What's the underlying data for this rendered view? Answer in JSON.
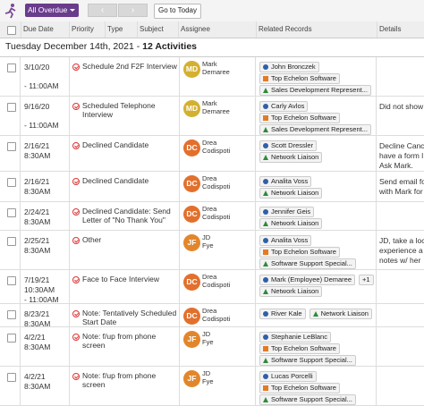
{
  "toolbar": {
    "filter": "All Overdue",
    "today_button": "Go to Today"
  },
  "columns": [
    "Due Date",
    "Priority",
    "Type",
    "Subject",
    "Assignee",
    "Related Records",
    "Details"
  ],
  "group_header": {
    "date": "Tuesday December 14th, 2021 -",
    "count": "12 Activities"
  },
  "rows": [
    {
      "date_lines": [
        "3/10/20",
        "- 11:00AM"
      ],
      "subject": "Schedule 2nd F2F Interview",
      "initials": "MD",
      "avatar_color": "#d4b030",
      "assignee": [
        "Mark",
        "Demaree"
      ],
      "related": [
        [
          {
            "text": "John Bronczek",
            "icon": "circle"
          }
        ],
        [
          {
            "text": "Top Echelon Software",
            "icon": "square"
          }
        ],
        [
          {
            "text": "Sales Development Represent...",
            "icon": "triangle"
          }
        ]
      ],
      "details": []
    },
    {
      "date_lines": [
        "9/16/20",
        "- 11:00AM"
      ],
      "subject": "Scheduled Telephone Interview",
      "initials": "MD",
      "avatar_color": "#d4b030",
      "assignee": [
        "Mark",
        "Demaree"
      ],
      "related": [
        [
          {
            "text": "Carly Avlos",
            "icon": "circle"
          }
        ],
        [
          {
            "text": "Top Echelon Software",
            "icon": "square"
          }
        ],
        [
          {
            "text": "Sales Development Represent...",
            "icon": "triangle"
          }
        ]
      ],
      "details": [
        "Did not show"
      ]
    },
    {
      "date_lines": [
        "2/16/21",
        "8:30AM"
      ],
      "subject": "Declined Candidate",
      "initials": "DC",
      "avatar_color": "#e2702c",
      "assignee": [
        "Drea",
        "Codispoti"
      ],
      "related": [
        [
          {
            "text": "Scott Dressler",
            "icon": "circle"
          }
        ],
        [
          {
            "text": "Network Liaison",
            "icon": "triangle"
          }
        ]
      ],
      "details": [
        "Decline Canc",
        "have a form l",
        "Ask Mark."
      ]
    },
    {
      "date_lines": [
        "2/16/21",
        "8:30AM"
      ],
      "subject": "Declined Candidate",
      "initials": "DC",
      "avatar_color": "#e2702c",
      "assignee": [
        "Drea",
        "Codispoti"
      ],
      "related": [
        [
          {
            "text": "Analita Voss",
            "icon": "circle"
          }
        ],
        [
          {
            "text": "Network Liaison",
            "icon": "triangle"
          }
        ]
      ],
      "details": [
        "Send email fo",
        "with Mark for"
      ]
    },
    {
      "date_lines": [
        "2/24/21",
        "8:30AM"
      ],
      "subject": "Declined Candidate: Send Letter of \"No Thank You\"",
      "initials": "DC",
      "avatar_color": "#e2702c",
      "assignee": [
        "Drea",
        "Codispoti"
      ],
      "related": [
        [
          {
            "text": "Jennifer Geis",
            "icon": "circle"
          }
        ],
        [
          {
            "text": "Network Liaison",
            "icon": "triangle"
          }
        ]
      ],
      "details": []
    },
    {
      "date_lines": [
        "2/25/21",
        "8:30AM"
      ],
      "subject": "Other",
      "initials": "JF",
      "avatar_color": "#e2862c",
      "assignee": [
        "JD",
        "Fye"
      ],
      "related": [
        [
          {
            "text": "Analita Voss",
            "icon": "circle"
          }
        ],
        [
          {
            "text": "Top Echelon Software",
            "icon": "square"
          }
        ],
        [
          {
            "text": "Software Support Special...",
            "icon": "triangle"
          }
        ]
      ],
      "details": [
        "JD, take a loc",
        "experience a",
        "notes w/ her"
      ]
    },
    {
      "date_lines": [
        "7/19/21",
        "10:30AM",
        "- 11:00AM"
      ],
      "subject": "Face to Face Interview",
      "initials": "DC",
      "avatar_color": "#e2702c",
      "assignee": [
        "Drea",
        "Codispoti"
      ],
      "related": [
        [
          {
            "text": "Mark (Employee) Demaree",
            "icon": "circle"
          },
          {
            "text": "+1",
            "icon": "none"
          }
        ],
        [
          {
            "text": "Network Liaison",
            "icon": "triangle"
          }
        ]
      ],
      "details": []
    },
    {
      "date_lines": [
        "8/23/21",
        "8:30AM"
      ],
      "subject": "Note: Tentatively Scheduled Start Date",
      "initials": "DC",
      "avatar_color": "#e2702c",
      "assignee": [
        "Drea",
        "Codispoti"
      ],
      "related": [
        [
          {
            "text": "River Kale",
            "icon": "circle"
          },
          {
            "text": "Network Liaison",
            "icon": "triangle"
          }
        ]
      ],
      "details": []
    },
    {
      "date_lines": [
        "4/2/21",
        "8:30AM"
      ],
      "subject": "Note: f/up from phone screen",
      "initials": "JF",
      "avatar_color": "#e2862c",
      "assignee": [
        "JD",
        "Fye"
      ],
      "related": [
        [
          {
            "text": "Stephanie LeBlanc",
            "icon": "circle"
          }
        ],
        [
          {
            "text": "Top Echelon Software",
            "icon": "square"
          }
        ],
        [
          {
            "text": "Software Support Special...",
            "icon": "triangle"
          }
        ]
      ],
      "details": []
    },
    {
      "date_lines": [
        "4/2/21",
        "8:30AM"
      ],
      "subject": "Note: f/up from phone screen",
      "initials": "JF",
      "avatar_color": "#e2862c",
      "assignee": [
        "JD",
        "Fye"
      ],
      "related": [
        [
          {
            "text": "Lucas Porcelli",
            "icon": "circle"
          }
        ],
        [
          {
            "text": "Top Echelon Software",
            "icon": "square"
          }
        ],
        [
          {
            "text": "Software Support Special...",
            "icon": "triangle"
          }
        ]
      ],
      "details": []
    }
  ]
}
